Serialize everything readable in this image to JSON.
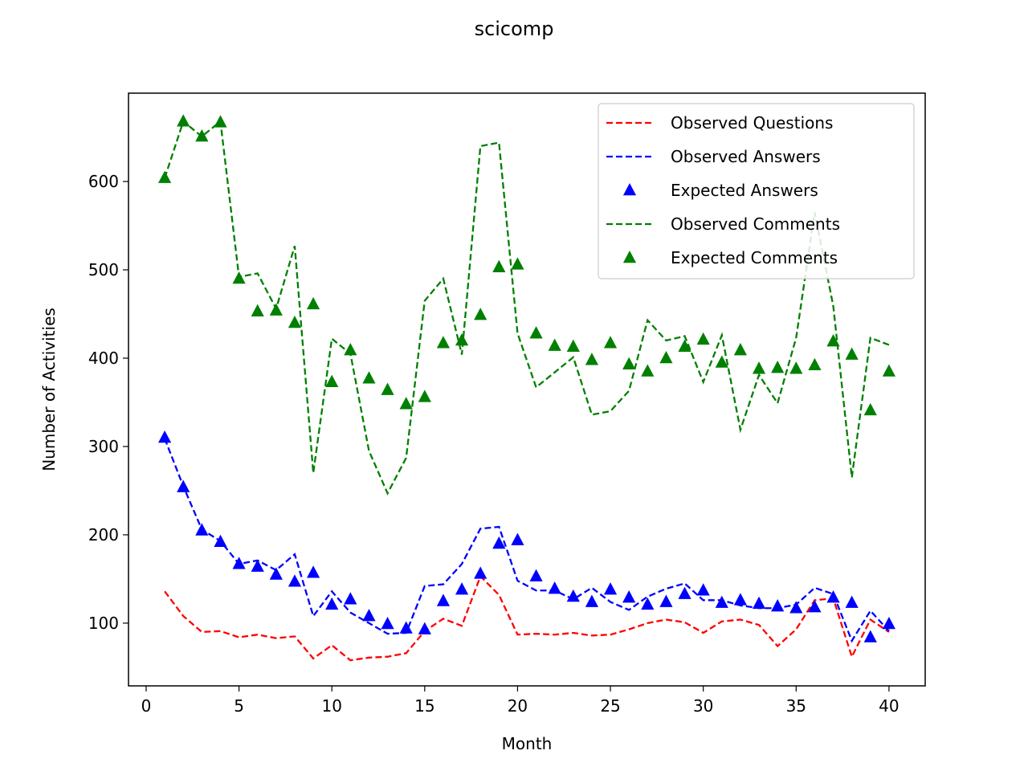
{
  "chart_data": {
    "type": "line",
    "title": "scicomp",
    "xlabel": "Month",
    "ylabel": "Number of Activities",
    "xlim": [
      -0.95,
      41.95
    ],
    "ylim": [
      29,
      700
    ],
    "xticks": [
      0,
      5,
      10,
      15,
      20,
      25,
      30,
      35,
      40
    ],
    "yticks": [
      100,
      200,
      300,
      400,
      500,
      600
    ],
    "grid": false,
    "legend_position": "upper right",
    "x": [
      1,
      2,
      3,
      4,
      5,
      6,
      7,
      8,
      9,
      10,
      11,
      12,
      13,
      14,
      15,
      16,
      17,
      18,
      19,
      20,
      21,
      22,
      23,
      24,
      25,
      26,
      27,
      28,
      29,
      30,
      31,
      32,
      33,
      34,
      35,
      36,
      37,
      38,
      39,
      40
    ],
    "series": [
      {
        "name": "Observed Questions",
        "style": "dashed-line",
        "color": "#ff0000",
        "values": [
          136,
          108,
          90,
          91,
          84,
          87,
          83,
          85,
          60,
          75,
          58,
          61,
          62,
          66,
          91,
          105,
          97,
          153,
          132,
          87,
          88,
          87,
          89,
          86,
          87,
          93,
          100,
          104,
          101,
          89,
          102,
          104,
          98,
          74,
          93,
          126,
          128,
          62,
          104,
          90
        ]
      },
      {
        "name": "Observed Answers",
        "style": "dashed-line",
        "color": "#0000ff",
        "values": [
          309,
          255,
          206,
          193,
          167,
          171,
          160,
          178,
          108,
          136,
          112,
          100,
          88,
          89,
          142,
          144,
          167,
          207,
          209,
          148,
          137,
          137,
          127,
          140,
          124,
          115,
          130,
          139,
          145,
          126,
          126,
          120,
          117,
          117,
          121,
          140,
          133,
          80,
          114,
          91
        ]
      },
      {
        "name": "Expected Answers",
        "style": "triangle-markers",
        "color": "#0000ff",
        "values": [
          310,
          254,
          205,
          192,
          167,
          164,
          155,
          147,
          157,
          121,
          127,
          108,
          99,
          94,
          93,
          125,
          138,
          156,
          190,
          194,
          153,
          139,
          130,
          124,
          138,
          129,
          121,
          124,
          133,
          137,
          123,
          126,
          122,
          119,
          117,
          118,
          129,
          123,
          84,
          99
        ]
      },
      {
        "name": "Observed Comments",
        "style": "dashed-line",
        "color": "#008000",
        "values": [
          604,
          668,
          651,
          668,
          492,
          496,
          456,
          527,
          270,
          422,
          405,
          295,
          247,
          287,
          465,
          490,
          404,
          640,
          644,
          428,
          367,
          384,
          401,
          336,
          340,
          363,
          443,
          420,
          425,
          373,
          426,
          319,
          381,
          349,
          423,
          565,
          459,
          265,
          423,
          415
        ]
      },
      {
        "name": "Expected Comments",
        "style": "triangle-markers",
        "color": "#008000",
        "values": [
          604,
          668,
          651,
          667,
          490,
          453,
          454,
          440,
          461,
          373,
          409,
          377,
          364,
          348,
          356,
          417,
          420,
          449,
          503,
          506,
          428,
          414,
          413,
          398,
          417,
          393,
          385,
          400,
          413,
          421,
          395,
          409,
          388,
          389,
          388,
          392,
          419,
          404,
          341,
          385
        ]
      }
    ]
  }
}
